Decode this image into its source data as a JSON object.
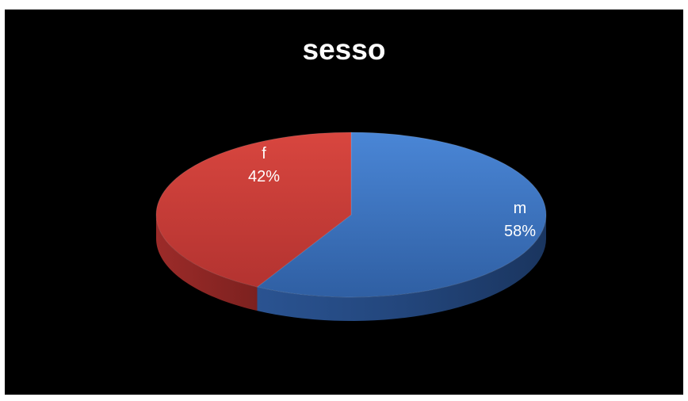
{
  "chart_data": {
    "type": "pie",
    "title": "sesso",
    "style": "3d-pie",
    "series": [
      {
        "name": "m",
        "value": 58,
        "label": "58%",
        "color": "#3c72bf"
      },
      {
        "name": "f",
        "value": 42,
        "label": "42%",
        "color": "#c43c38"
      }
    ],
    "background": "#000000",
    "label_color": "#ffffff"
  }
}
